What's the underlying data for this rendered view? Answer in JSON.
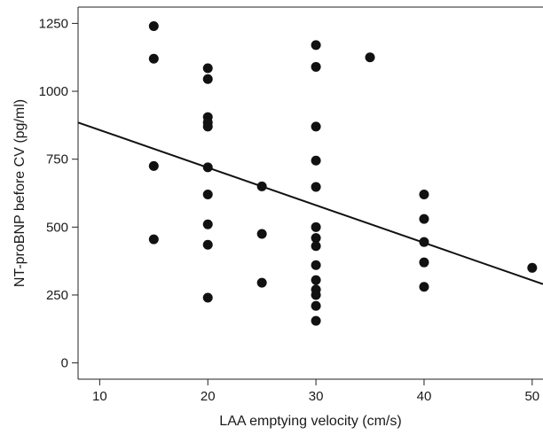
{
  "chart_data": {
    "type": "scatter",
    "title": "",
    "xlabel": "LAA emptying velocity (cm/s)",
    "ylabel": "NT-proBNP before CV (pg/ml)",
    "xlim": [
      8,
      51
    ],
    "ylim": [
      -60,
      1310
    ],
    "xticks": [
      10,
      20,
      30,
      40,
      50
    ],
    "yticks": [
      0,
      250,
      500,
      750,
      1000,
      1250
    ],
    "grid": false,
    "legend": "none",
    "points": [
      {
        "x": 15,
        "y": 1240
      },
      {
        "x": 15,
        "y": 1120
      },
      {
        "x": 15,
        "y": 725
      },
      {
        "x": 15,
        "y": 455
      },
      {
        "x": 20,
        "y": 1085
      },
      {
        "x": 20,
        "y": 1045
      },
      {
        "x": 20,
        "y": 905
      },
      {
        "x": 20,
        "y": 885
      },
      {
        "x": 20,
        "y": 870
      },
      {
        "x": 20,
        "y": 720
      },
      {
        "x": 20,
        "y": 620
      },
      {
        "x": 20,
        "y": 510
      },
      {
        "x": 20,
        "y": 435
      },
      {
        "x": 20,
        "y": 240
      },
      {
        "x": 25,
        "y": 650
      },
      {
        "x": 25,
        "y": 475
      },
      {
        "x": 25,
        "y": 295
      },
      {
        "x": 30,
        "y": 1170
      },
      {
        "x": 30,
        "y": 1090
      },
      {
        "x": 30,
        "y": 870
      },
      {
        "x": 30,
        "y": 745
      },
      {
        "x": 30,
        "y": 648
      },
      {
        "x": 30,
        "y": 500
      },
      {
        "x": 30,
        "y": 460
      },
      {
        "x": 30,
        "y": 430
      },
      {
        "x": 30,
        "y": 360
      },
      {
        "x": 30,
        "y": 305
      },
      {
        "x": 30,
        "y": 270
      },
      {
        "x": 30,
        "y": 250
      },
      {
        "x": 30,
        "y": 210
      },
      {
        "x": 30,
        "y": 155
      },
      {
        "x": 35,
        "y": 1125
      },
      {
        "x": 40,
        "y": 620
      },
      {
        "x": 40,
        "y": 530
      },
      {
        "x": 40,
        "y": 445
      },
      {
        "x": 40,
        "y": 370
      },
      {
        "x": 40,
        "y": 280
      },
      {
        "x": 50,
        "y": 350
      }
    ],
    "regression_line": {
      "x": [
        8,
        51
      ],
      "y": [
        885,
        290
      ]
    },
    "colors": {
      "points": "#111111",
      "line": "#111111",
      "axis": "#222222"
    }
  }
}
